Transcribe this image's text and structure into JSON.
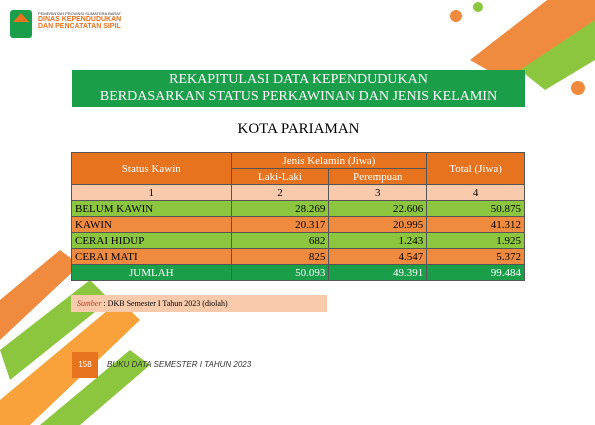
{
  "header": {
    "agency_line1": "PEMERINTAH PROVINSI SUMATERA BARAT",
    "agency_line2": "DINAS KEPENDUDUKAN",
    "agency_line3": "DAN PENCATATAN SIPIL"
  },
  "title": {
    "line1": "REKAPITULASI DATA KEPENDUDUKAN",
    "line2": "BERDASARKAN STATUS PERKAWINAN DAN JENIS KELAMIN"
  },
  "subtitle": "KOTA PARIAMAN",
  "table": {
    "header": {
      "status": "Status Kawin",
      "gender_group": "Jenis Kelamin (Jiwa)",
      "male": "Laki-Laki",
      "female": "Perempuan",
      "total": "Total (Jiwa)"
    },
    "column_numbers": [
      "1",
      "2",
      "3",
      "4"
    ],
    "rows": [
      [
        "BELUM KAWIN",
        "28.269",
        "22.606",
        "50.875"
      ],
      [
        "KAWIN",
        "20.317",
        "20.995",
        "41.312"
      ],
      [
        "CERAI HIDUP",
        "682",
        "1.243",
        "1.925"
      ],
      [
        "CERAI MATI",
        "825",
        "4.547",
        "5.372"
      ]
    ],
    "total_row": [
      "JUMLAH",
      "50.093",
      "49.391",
      "99.484"
    ]
  },
  "source": {
    "label": "Sumber",
    "text": ": DKB Semester I Tahun 2023 (diolah)"
  },
  "footer": {
    "page": "158",
    "book": "BUKU DATA SEMESTER I TAHUN 2023"
  }
}
